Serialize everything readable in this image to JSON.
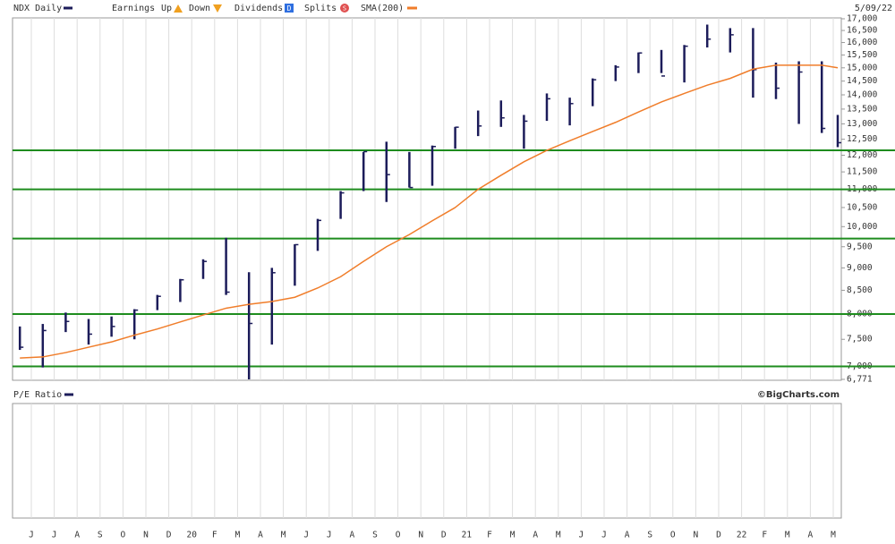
{
  "chart_data": {
    "type": "ohlc",
    "title": "NDX Daily",
    "date": "5/09/22",
    "legend": {
      "earnings": "Earnings",
      "up": "Up",
      "down": "Down",
      "dividends": "Dividends",
      "dividends_icon": "D",
      "splits": "Splits",
      "splits_icon": "S"
    },
    "categories": [
      null,
      "J",
      "J",
      "A",
      "S",
      "O",
      "N",
      "D",
      "20",
      "F",
      "M",
      "A",
      "M",
      "J",
      "J",
      "A",
      "S",
      "O",
      "N",
      "D",
      "21",
      "F",
      "M",
      "A",
      "M",
      "J",
      "J",
      "A",
      "S",
      "O",
      "N",
      "D",
      "22",
      "F",
      "M",
      "A",
      "M"
    ],
    "high": [
      7750,
      7800,
      8030,
      7900,
      7950,
      8100,
      8400,
      8750,
      9200,
      9720,
      8900,
      9000,
      9560,
      10200,
      10950,
      12100,
      12420,
      12100,
      12300,
      12900,
      13450,
      13800,
      13300,
      14050,
      13900,
      14600,
      15100,
      15600,
      15700,
      15900,
      16750,
      16600,
      16600,
      15200,
      15250,
      15250,
      13300
    ],
    "low": [
      7300,
      6980,
      7640,
      7400,
      7550,
      7500,
      8080,
      8250,
      8750,
      8400,
      6771,
      7400,
      8600,
      9400,
      10200,
      10950,
      10650,
      11050,
      11100,
      12200,
      12600,
      12900,
      12200,
      13100,
      12950,
      13600,
      14500,
      14800,
      14800,
      14450,
      15800,
      15600,
      13900,
      13850,
      13000,
      12700,
      12250
    ],
    "close": [
      7350,
      7670,
      7850,
      7600,
      7750,
      8080,
      8370,
      8730,
      9150,
      8460,
      7810,
      8890,
      9550,
      10160,
      10900,
      12110,
      11420,
      11050,
      12270,
      12890,
      12930,
      13200,
      13090,
      13860,
      13690,
      14550,
      15030,
      15580,
      14690,
      15850,
      16140,
      16320,
      14930,
      14240,
      14840,
      12850,
      12390
    ],
    "color": "#1c1c5a",
    "sma": {
      "name": "SMA(200)",
      "color": "#f07d2a",
      "values": [
        7150,
        7170,
        7250,
        7350,
        7450,
        7580,
        7700,
        7840,
        7980,
        8120,
        8200,
        8260,
        8350,
        8550,
        8800,
        9150,
        9500,
        9800,
        10150,
        10500,
        11000,
        11400,
        11800,
        12150,
        12450,
        12750,
        13050,
        13400,
        13750,
        14050,
        14350,
        14600,
        14950,
        15100,
        15100,
        15100,
        15000
      ]
    },
    "levels": {
      "color": "#1e8c1e",
      "values": [
        7000,
        8000,
        9700,
        11000,
        12150
      ]
    },
    "ylim": [
      6771,
      17000
    ],
    "log_scale": true,
    "yticks": [
      {
        "value": 6771,
        "label": "6,771"
      },
      {
        "value": 7000,
        "label": "7,000"
      },
      {
        "value": 7500,
        "label": "7,500"
      },
      {
        "value": 8000,
        "label": "8,000"
      },
      {
        "value": 8500,
        "label": "8,500"
      },
      {
        "value": 9000,
        "label": "9,000"
      },
      {
        "value": 9500,
        "label": "9,500"
      },
      {
        "value": 10000,
        "label": "10,000"
      },
      {
        "value": 10500,
        "label": "10,500"
      },
      {
        "value": 11000,
        "label": "11,000"
      },
      {
        "value": 11500,
        "label": "11,500"
      },
      {
        "value": 12000,
        "label": "12,000"
      },
      {
        "value": 12500,
        "label": "12,500"
      },
      {
        "value": 13000,
        "label": "13,000"
      },
      {
        "value": 13500,
        "label": "13,500"
      },
      {
        "value": 14000,
        "label": "14,000"
      },
      {
        "value": 14500,
        "label": "14,500"
      },
      {
        "value": 15000,
        "label": "15,000"
      },
      {
        "value": 15500,
        "label": "15,500"
      },
      {
        "value": 16000,
        "label": "16,000"
      },
      {
        "value": 16500,
        "label": "16,500"
      },
      {
        "value": 17000,
        "label": "17,000"
      }
    ],
    "lower_panel": {
      "title": "P/E Ratio"
    },
    "credit": "©BigCharts.com"
  }
}
